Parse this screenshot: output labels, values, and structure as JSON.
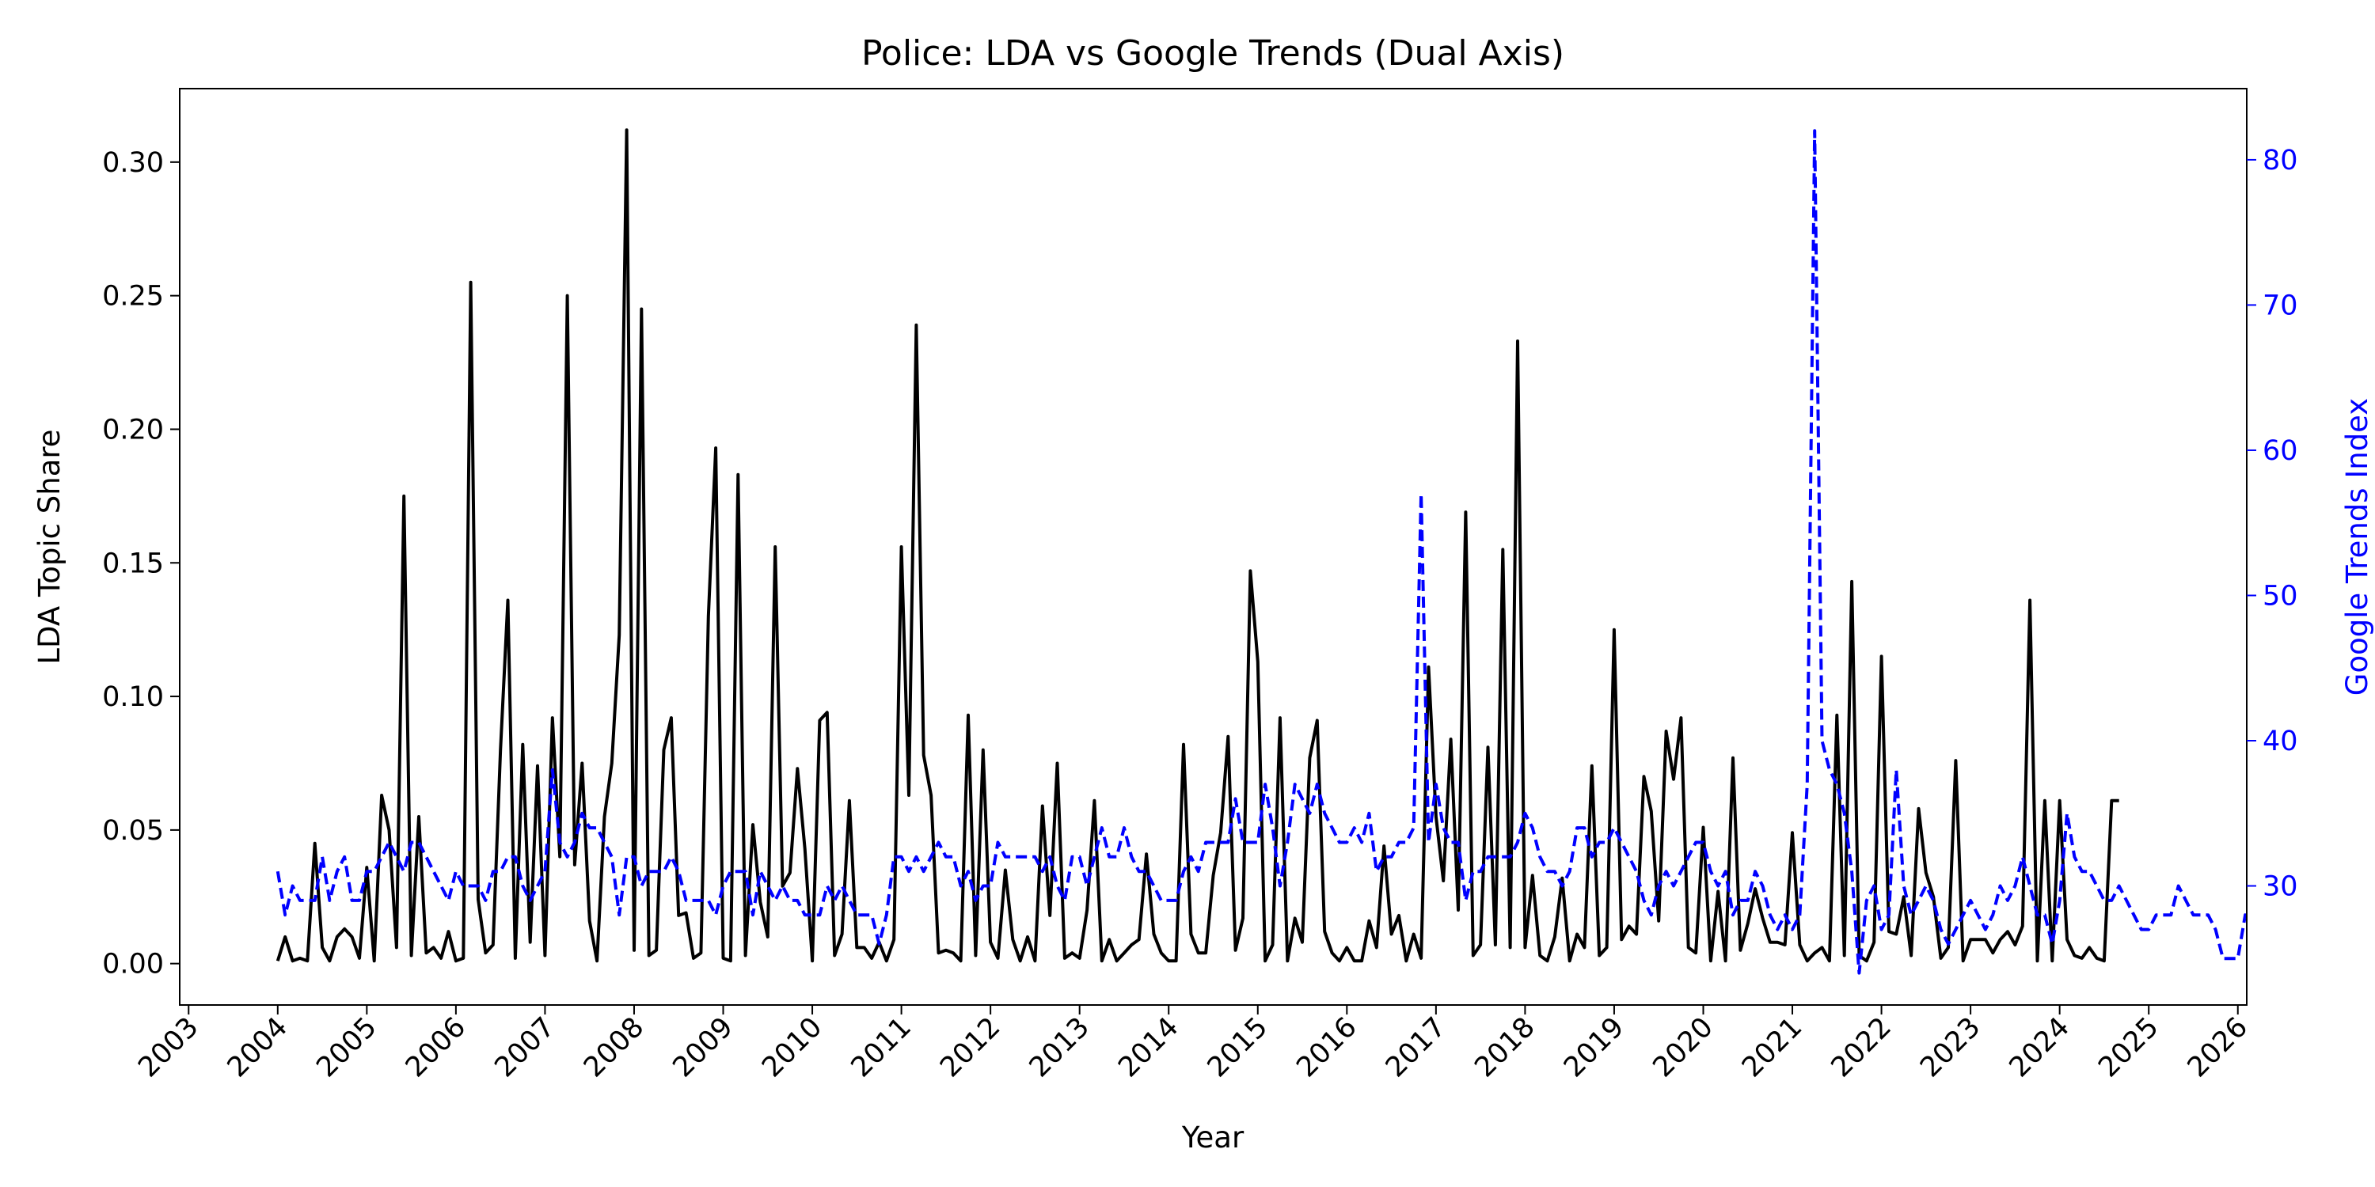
{
  "chart_data": {
    "type": "line",
    "title": "Police: LDA vs Google Trends (Dual Axis)",
    "xlabel": "Year",
    "ylabel_left": "LDA Topic Share",
    "ylabel_right": "Google Trends Index",
    "xlim": [
      2002.9,
      2026.1
    ],
    "ylim_left": [
      -0.0155,
      0.3275
    ],
    "ylim_right": [
      21.8,
      84.9
    ],
    "x_ticks": [
      "2003",
      "2004",
      "2005",
      "2006",
      "2007",
      "2008",
      "2009",
      "2010",
      "2011",
      "2012",
      "2013",
      "2014",
      "2015",
      "2016",
      "2017",
      "2018",
      "2019",
      "2020",
      "2021",
      "2022",
      "2023",
      "2024",
      "2025",
      "2026"
    ],
    "y_ticks_left": [
      "0.00",
      "0.05",
      "0.10",
      "0.15",
      "0.20",
      "0.25",
      "0.30"
    ],
    "y_ticks_right": [
      "30",
      "40",
      "50",
      "60",
      "70",
      "80"
    ],
    "grid": false,
    "series": [
      {
        "name": "LDA Topic Share",
        "axis": "left",
        "color": "#000000",
        "style": "solid",
        "x_start": 2004.0,
        "x_step": 0.0833333,
        "values": [
          0.001,
          0.01,
          0.001,
          0.002,
          0.001,
          0.045,
          0.006,
          0.001,
          0.01,
          0.013,
          0.01,
          0.002,
          0.036,
          0.001,
          0.063,
          0.05,
          0.006,
          0.175,
          0.003,
          0.055,
          0.004,
          0.006,
          0.002,
          0.012,
          0.001,
          0.002,
          0.255,
          0.024,
          0.004,
          0.007,
          0.08,
          0.136,
          0.002,
          0.082,
          0.008,
          0.074,
          0.003,
          0.092,
          0.04,
          0.25,
          0.037,
          0.075,
          0.016,
          0.001,
          0.055,
          0.075,
          0.123,
          0.312,
          0.005,
          0.245,
          0.003,
          0.005,
          0.08,
          0.092,
          0.018,
          0.019,
          0.002,
          0.004,
          0.13,
          0.193,
          0.002,
          0.001,
          0.183,
          0.003,
          0.052,
          0.023,
          0.01,
          0.156,
          0.029,
          0.034,
          0.073,
          0.043,
          0.001,
          0.091,
          0.094,
          0.003,
          0.011,
          0.061,
          0.006,
          0.006,
          0.002,
          0.008,
          0.001,
          0.009,
          0.156,
          0.063,
          0.239,
          0.078,
          0.063,
          0.004,
          0.005,
          0.004,
          0.001,
          0.093,
          0.003,
          0.08,
          0.008,
          0.002,
          0.035,
          0.009,
          0.001,
          0.01,
          0.001,
          0.059,
          0.018,
          0.075,
          0.002,
          0.004,
          0.002,
          0.02,
          0.061,
          0.001,
          0.009,
          0.001,
          0.004,
          0.007,
          0.009,
          0.041,
          0.011,
          0.004,
          0.001,
          0.001,
          0.082,
          0.011,
          0.004,
          0.004,
          0.033,
          0.049,
          0.085,
          0.005,
          0.017,
          0.147,
          0.113,
          0.001,
          0.007,
          0.092,
          0.001,
          0.017,
          0.008,
          0.077,
          0.091,
          0.012,
          0.004,
          0.001,
          0.006,
          0.001,
          0.001,
          0.016,
          0.006,
          0.044,
          0.011,
          0.018,
          0.001,
          0.011,
          0.002,
          0.111,
          0.055,
          0.031,
          0.084,
          0.02,
          0.169,
          0.003,
          0.007,
          0.081,
          0.007,
          0.155,
          0.006,
          0.233,
          0.006,
          0.033,
          0.003,
          0.001,
          0.01,
          0.032,
          0.001,
          0.011,
          0.006,
          0.074,
          0.003,
          0.006,
          0.125,
          0.009,
          0.014,
          0.011,
          0.07,
          0.057,
          0.016,
          0.087,
          0.069,
          0.092,
          0.006,
          0.004,
          0.051,
          0.001,
          0.027,
          0.001,
          0.077,
          0.005,
          0.015,
          0.028,
          0.017,
          0.008,
          0.008,
          0.007,
          0.049,
          0.007,
          0.001,
          0.004,
          0.006,
          0.001,
          0.093,
          0.003,
          0.143,
          0.003,
          0.001,
          0.008,
          0.115,
          0.012,
          0.011,
          0.025,
          0.003,
          0.058,
          0.034,
          0.025,
          0.002,
          0.006,
          0.076,
          0.001,
          0.009,
          0.009,
          0.009,
          0.004,
          0.009,
          0.012,
          0.007,
          0.014,
          0.136,
          0.001,
          0.061,
          0.001,
          0.061,
          0.009,
          0.003,
          0.002,
          0.006,
          0.002,
          0.001,
          0.061,
          0.061
        ]
      },
      {
        "name": "Google Trends Index",
        "axis": "right",
        "color": "#0000ff",
        "style": "dashed",
        "x_start": 2004.0,
        "x_step": 0.0833333,
        "values": [
          31,
          28,
          30,
          29,
          29,
          29,
          32,
          29,
          31,
          32,
          29,
          29,
          31,
          31,
          32,
          33,
          32,
          31,
          33,
          33,
          32,
          31,
          30,
          29,
          31,
          30,
          30,
          30,
          29,
          31,
          31,
          32,
          32,
          30,
          29,
          30,
          31,
          38,
          33,
          32,
          33,
          35,
          34,
          34,
          33,
          32,
          28,
          32,
          32,
          30,
          31,
          31,
          31,
          32,
          31,
          29,
          29,
          29,
          29,
          28,
          30,
          31,
          31,
          31,
          28,
          31,
          30,
          29,
          30,
          29,
          29,
          28,
          28,
          28,
          30,
          29,
          30,
          29,
          28,
          28,
          28,
          26,
          28,
          32,
          32,
          31,
          32,
          31,
          32,
          33,
          32,
          32,
          30,
          31,
          29,
          30,
          30,
          33,
          32,
          32,
          32,
          32,
          32,
          31,
          32,
          30,
          29,
          32,
          32,
          30,
          32,
          34,
          32,
          32,
          34,
          32,
          31,
          31,
          30,
          29,
          29,
          29,
          31,
          32,
          31,
          33,
          33,
          33,
          33,
          36,
          33,
          33,
          33,
          37,
          34,
          30,
          33,
          37,
          36,
          35,
          37,
          35,
          34,
          33,
          33,
          34,
          33,
          35,
          31,
          32,
          32,
          33,
          33,
          34,
          57,
          33,
          37,
          34,
          33,
          33,
          29,
          31,
          31,
          32,
          32,
          32,
          32,
          33,
          35,
          34,
          32,
          31,
          31,
          30,
          31,
          34,
          34,
          32,
          33,
          33,
          34,
          33,
          32,
          31,
          29,
          28,
          30,
          31,
          30,
          31,
          32,
          33,
          33,
          31,
          30,
          31,
          28,
          29,
          29,
          31,
          30,
          28,
          27,
          28,
          27,
          28,
          37,
          82,
          40,
          38,
          37,
          35,
          31,
          24,
          29,
          30,
          27,
          28,
          38,
          30,
          28,
          29,
          30,
          29,
          27,
          26,
          27,
          28,
          29,
          28,
          27,
          28,
          30,
          29,
          30,
          32,
          30,
          28,
          28,
          26,
          29,
          35,
          32,
          31,
          31,
          30,
          29,
          29,
          30,
          29,
          28,
          27,
          27,
          28,
          28,
          28,
          30,
          29,
          28,
          28,
          28,
          27,
          25,
          25,
          25,
          28,
          27,
          27
        ]
      }
    ]
  }
}
